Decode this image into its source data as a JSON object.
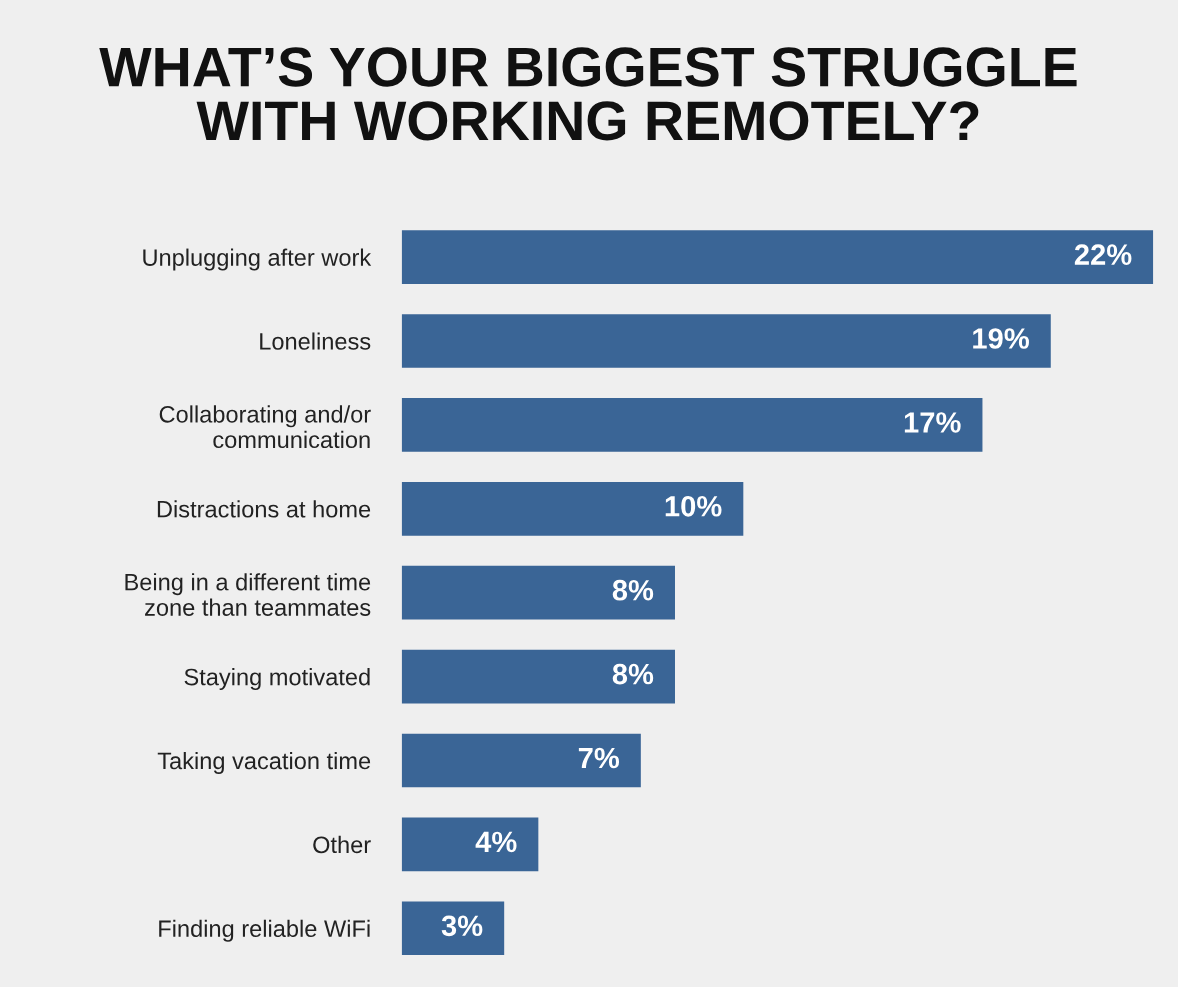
{
  "chart_data": {
    "type": "bar",
    "orientation": "horizontal",
    "title": "WHAT’S YOUR BIGGEST STRUGGLE\nWITH WORKING REMOTELY?",
    "categories": [
      "Unplugging after work",
      "Loneliness",
      "Collaborating and/or\ncommunication",
      "Distractions at home",
      "Being in a different time\nzone than teammates",
      "Staying motivated",
      "Taking vacation time",
      "Other",
      "Finding reliable WiFi"
    ],
    "values": [
      22,
      19,
      17,
      10,
      8,
      8,
      7,
      4,
      3
    ],
    "value_labels": [
      "22%",
      "19%",
      "17%",
      "10%",
      "8%",
      "8%",
      "7%",
      "4%",
      "3%"
    ],
    "color": "#3a6596"
  }
}
